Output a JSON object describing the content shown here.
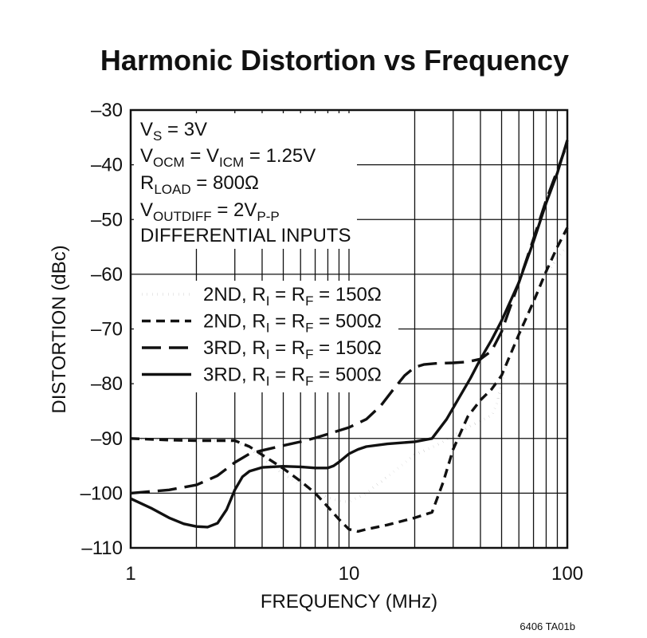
{
  "chart_data": {
    "type": "line",
    "title": "Harmonic Distortion vs Frequency",
    "xlabel": "FREQUENCY (MHz)",
    "ylabel": "DISTORTION (dBc)",
    "xscale": "log",
    "xlim": [
      1,
      100
    ],
    "ylim": [
      -110,
      -30
    ],
    "x_ticks": [
      1,
      10,
      100
    ],
    "x_tick_labels": [
      "1",
      "10",
      "100"
    ],
    "y_ticks": [
      -30,
      -40,
      -50,
      -60,
      -70,
      -80,
      -90,
      -100,
      -110
    ],
    "y_tick_labels": [
      "–30",
      "–40",
      "–50",
      "–60",
      "–70",
      "–80",
      "–90",
      "–100",
      "–110"
    ],
    "grid": true,
    "conditions": {
      "vs": {
        "main": "V",
        "sub": "S",
        "rest": " = 3V"
      },
      "vocm": {
        "a": "V",
        "a_sub": "OCM",
        "b": " = V",
        "b_sub": "ICM",
        "rest": " = 1.25V"
      },
      "rload": {
        "main": "R",
        "sub": "LOAD",
        "rest": " = 800Ω"
      },
      "voutdiff": {
        "main": "V",
        "sub": "OUTDIFF",
        "mid": " = 2V",
        "sub2": "P-P"
      },
      "inputs": "DIFFERENTIAL INPUTS"
    },
    "series": [
      {
        "name": "2ND, RI = RF = 150Ω",
        "label_a": "2ND, R",
        "sub1": "I",
        "label_b": " = R",
        "sub2": "F",
        "label_c": " = 150Ω",
        "style": "dotted",
        "x": [
          1,
          1.5,
          2,
          2.5,
          3,
          3.5,
          4,
          5,
          6,
          7,
          8,
          9,
          10,
          12,
          15,
          20,
          25,
          30,
          35,
          40,
          45,
          48,
          52,
          56,
          60,
          70,
          80,
          90,
          100
        ],
        "y": [
          -90,
          -90.3,
          -90.4,
          -90.4,
          -90.6,
          -91.8,
          -93.5,
          -96.5,
          -98.3,
          -99.8,
          -100.8,
          -101.4,
          -101.6,
          -100,
          -97,
          -93,
          -91.3,
          -89.5,
          -88,
          -86.8,
          -85.8,
          -83,
          -77,
          -73.5,
          -70.5,
          -65,
          -60,
          -57,
          -55
        ]
      },
      {
        "name": "2ND, RI = RF = 500Ω",
        "label_a": "2ND, R",
        "sub1": "I",
        "label_b": " = R",
        "sub2": "F",
        "label_c": " = 500Ω",
        "style": "short-dash",
        "x": [
          1,
          1.5,
          2,
          2.5,
          3,
          3.5,
          4,
          5,
          6,
          7,
          8,
          9,
          10,
          11,
          12,
          15,
          20,
          24,
          27,
          30,
          35,
          40,
          45,
          50,
          60,
          70,
          80,
          90,
          100
        ],
        "y": [
          -90,
          -90.3,
          -90.4,
          -90.4,
          -90.4,
          -91.5,
          -93,
          -95.5,
          -97.8,
          -100,
          -102.5,
          -104.8,
          -106.6,
          -107,
          -106.6,
          -105.8,
          -104.5,
          -103.5,
          -98,
          -92,
          -86,
          -83,
          -81,
          -78.5,
          -71,
          -65,
          -59.5,
          -55,
          -51.5
        ]
      },
      {
        "name": "3RD, RI = RF = 150Ω",
        "label_a": "3RD, R",
        "sub1": "I",
        "label_b": " = R",
        "sub2": "F",
        "label_c": " = 150Ω",
        "style": "long-dash",
        "x": [
          1,
          1.5,
          2,
          2.5,
          3,
          3.5,
          4,
          5,
          6,
          7,
          8,
          10,
          12,
          14,
          16,
          18,
          20,
          22,
          25,
          30,
          35,
          40,
          45,
          50,
          60,
          70,
          80,
          90,
          100
        ],
        "y": [
          -100,
          -99.4,
          -98.5,
          -96.8,
          -94.4,
          -92.8,
          -92.2,
          -91.3,
          -90.6,
          -89.9,
          -89.2,
          -88,
          -86.5,
          -84,
          -81,
          -78.5,
          -77,
          -76.5,
          -76.3,
          -76.2,
          -76,
          -75.5,
          -74,
          -70.5,
          -61.5,
          -53.5,
          -46.5,
          -41,
          -36
        ]
      },
      {
        "name": "3RD, RI = RF = 500Ω",
        "label_a": "3RD, R",
        "sub1": "I",
        "label_b": " = R",
        "sub2": "F",
        "label_c": " = 500Ω",
        "style": "solid",
        "x": [
          1,
          1.25,
          1.5,
          1.75,
          2,
          2.25,
          2.5,
          2.75,
          3,
          3.25,
          3.5,
          4,
          5,
          6,
          7,
          8,
          8.5,
          9,
          10,
          11,
          12,
          15,
          20,
          24,
          28,
          32,
          36,
          40,
          45,
          50,
          60,
          70,
          80,
          90,
          100
        ],
        "y": [
          -101,
          -102.8,
          -104.5,
          -105.6,
          -106.1,
          -106.2,
          -105.5,
          -103,
          -99.4,
          -97,
          -96,
          -95.3,
          -95.1,
          -95.2,
          -95.4,
          -95.4,
          -95,
          -94.3,
          -92.8,
          -92,
          -91.5,
          -91,
          -90.6,
          -90,
          -86.5,
          -82.5,
          -79,
          -75.5,
          -72,
          -68.5,
          -61.5,
          -54,
          -47,
          -41.5,
          -35.5
        ]
      }
    ]
  },
  "footnote": "6406 TA01b"
}
